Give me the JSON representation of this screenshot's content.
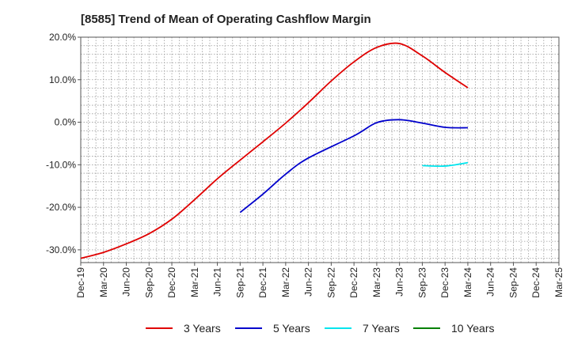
{
  "chart_data": {
    "type": "line",
    "title": "[8585]  Trend of Mean of Operating Cashflow Margin",
    "xlabel": "",
    "ylabel": "",
    "ylim": [
      -33,
      20
    ],
    "y_ticks": [
      "20.0%",
      "10.0%",
      "0.0%",
      "-10.0%",
      "-20.0%",
      "-30.0%"
    ],
    "x_ticks": [
      "Dec-19",
      "Mar-20",
      "Jun-20",
      "Sep-20",
      "Dec-20",
      "Mar-21",
      "Jun-21",
      "Sep-21",
      "Dec-21",
      "Mar-22",
      "Jun-22",
      "Sep-22",
      "Dec-22",
      "Mar-23",
      "Jun-23",
      "Sep-23",
      "Dec-23",
      "Mar-24",
      "Jun-24",
      "Sep-24",
      "Dec-24",
      "Mar-25"
    ],
    "grid": true,
    "legend_position": "bottom",
    "series": [
      {
        "name": "3 Years",
        "color": "#e00000",
        "points": [
          [
            "Dec-19",
            -32.0
          ],
          [
            "Mar-20",
            -30.6
          ],
          [
            "Jun-20",
            -28.6
          ],
          [
            "Sep-20",
            -26.2
          ],
          [
            "Dec-20",
            -22.8
          ],
          [
            "Mar-21",
            -18.2
          ],
          [
            "Jun-21",
            -13.3
          ],
          [
            "Sep-21",
            -8.9
          ],
          [
            "Dec-21",
            -4.6
          ],
          [
            "Mar-22",
            -0.2
          ],
          [
            "Jun-22",
            4.6
          ],
          [
            "Sep-22",
            9.7
          ],
          [
            "Dec-22",
            14.2
          ],
          [
            "Mar-23",
            17.6
          ],
          [
            "Jun-23",
            18.5
          ],
          [
            "Sep-23",
            15.6
          ],
          [
            "Dec-23",
            11.7
          ],
          [
            "Mar-24",
            8.1
          ]
        ]
      },
      {
        "name": "5 Years",
        "color": "#0000cc",
        "points": [
          [
            "Sep-21",
            -21.2
          ],
          [
            "Dec-21",
            -16.9
          ],
          [
            "Mar-22",
            -12.2
          ],
          [
            "Jun-22",
            -8.4
          ],
          [
            "Dec-22",
            -3.2
          ],
          [
            "Mar-23",
            -0.1
          ],
          [
            "Jun-23",
            0.6
          ],
          [
            "Sep-23",
            -0.2
          ],
          [
            "Dec-23",
            -1.2
          ],
          [
            "Mar-24",
            -1.3
          ]
        ]
      },
      {
        "name": "7 Years",
        "color": "#00e5ee",
        "points": [
          [
            "Sep-23",
            -10.2
          ],
          [
            "Dec-23",
            -10.3
          ],
          [
            "Mar-24",
            -9.5
          ]
        ]
      },
      {
        "name": "10 Years",
        "color": "#008000",
        "points": []
      }
    ]
  }
}
